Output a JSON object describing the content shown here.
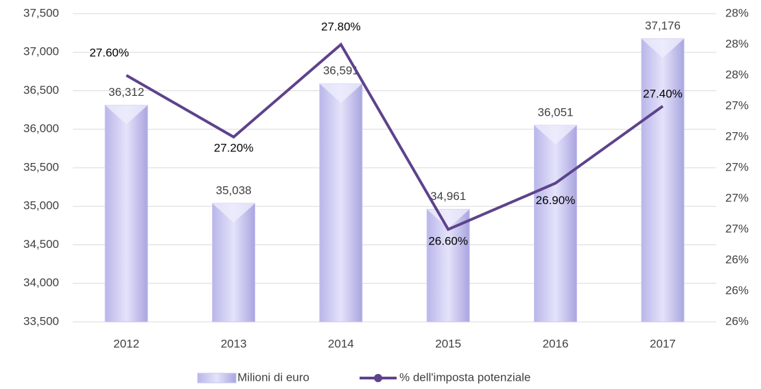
{
  "chart_data": {
    "type": "bar_line",
    "categories": [
      "2012",
      "2013",
      "2014",
      "2015",
      "2016",
      "2017"
    ],
    "series": [
      {
        "name": "Milioni di euro",
        "type": "bar",
        "color": "#c8c6ef",
        "values": [
          36312,
          35038,
          36591,
          34961,
          36051,
          37176
        ],
        "value_labels": [
          "36,312",
          "35,038",
          "36,591",
          "34,961",
          "36,051",
          "37,176"
        ]
      },
      {
        "name": "% dell'imposta potenziale",
        "type": "line",
        "axis": "y2",
        "color": "#5e428c",
        "values": [
          27.6,
          27.2,
          27.8,
          26.6,
          26.9,
          27.4
        ],
        "value_labels": [
          "27.60%",
          "27.20%",
          "27.80%",
          "26.60%",
          "26.90%",
          "27.40%"
        ]
      }
    ],
    "ylim": [
      33500,
      37500
    ],
    "yticks": [
      {
        "value": 33500,
        "label": "33,500"
      },
      {
        "value": 34000,
        "label": "34,000"
      },
      {
        "value": 34500,
        "label": "34,500"
      },
      {
        "value": 35000,
        "label": "35,000"
      },
      {
        "value": 35500,
        "label": "35,500"
      },
      {
        "value": 36000,
        "label": "36,000"
      },
      {
        "value": 36500,
        "label": "36,500"
      },
      {
        "value": 37000,
        "label": "37,000"
      },
      {
        "value": 37500,
        "label": "37,500"
      }
    ],
    "y2lim": [
      26,
      28
    ],
    "y2ticks": [
      {
        "value": 26,
        "label": "26%"
      },
      {
        "value": 26.2,
        "label": "26%"
      },
      {
        "value": 26.4,
        "label": "26%"
      },
      {
        "value": 26.6,
        "label": "27%"
      },
      {
        "value": 26.8,
        "label": "27%"
      },
      {
        "value": 27,
        "label": "27%"
      },
      {
        "value": 27.2,
        "label": "27%"
      },
      {
        "value": 27.4,
        "label": "27%"
      },
      {
        "value": 27.6,
        "label": "28%"
      },
      {
        "value": 27.8,
        "label": "28%"
      },
      {
        "value": 28,
        "label": "28%"
      }
    ],
    "grid": true,
    "legend": "bottom"
  }
}
